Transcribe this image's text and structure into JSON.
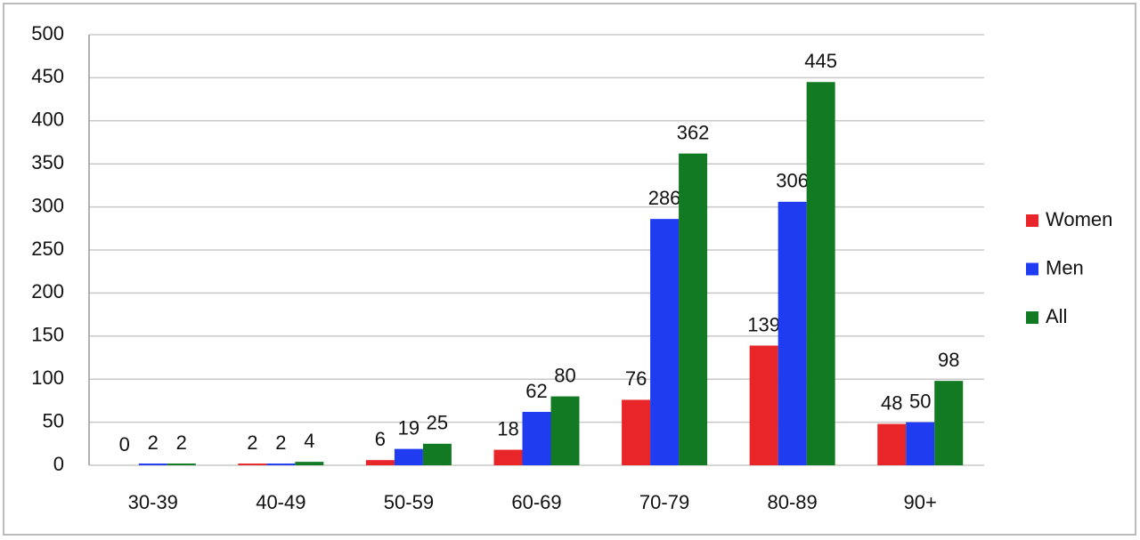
{
  "chart_data": {
    "type": "bar",
    "categories": [
      "30-39",
      "40-49",
      "50-59",
      "60-69",
      "70-79",
      "80-89",
      "90+"
    ],
    "series": [
      {
        "name": "Women",
        "color": "#e8262a",
        "values": [
          0,
          2,
          6,
          18,
          76,
          139,
          48
        ]
      },
      {
        "name": "Men",
        "color": "#1f3cf0",
        "values": [
          2,
          2,
          19,
          62,
          286,
          306,
          50
        ]
      },
      {
        "name": "All",
        "color": "#117a22",
        "values": [
          2,
          4,
          25,
          80,
          362,
          445,
          98
        ]
      }
    ],
    "ylim": [
      0,
      500
    ],
    "yticks": [
      0,
      50,
      100,
      150,
      200,
      250,
      300,
      350,
      400,
      450,
      500
    ],
    "grid": true,
    "legend": "right"
  }
}
